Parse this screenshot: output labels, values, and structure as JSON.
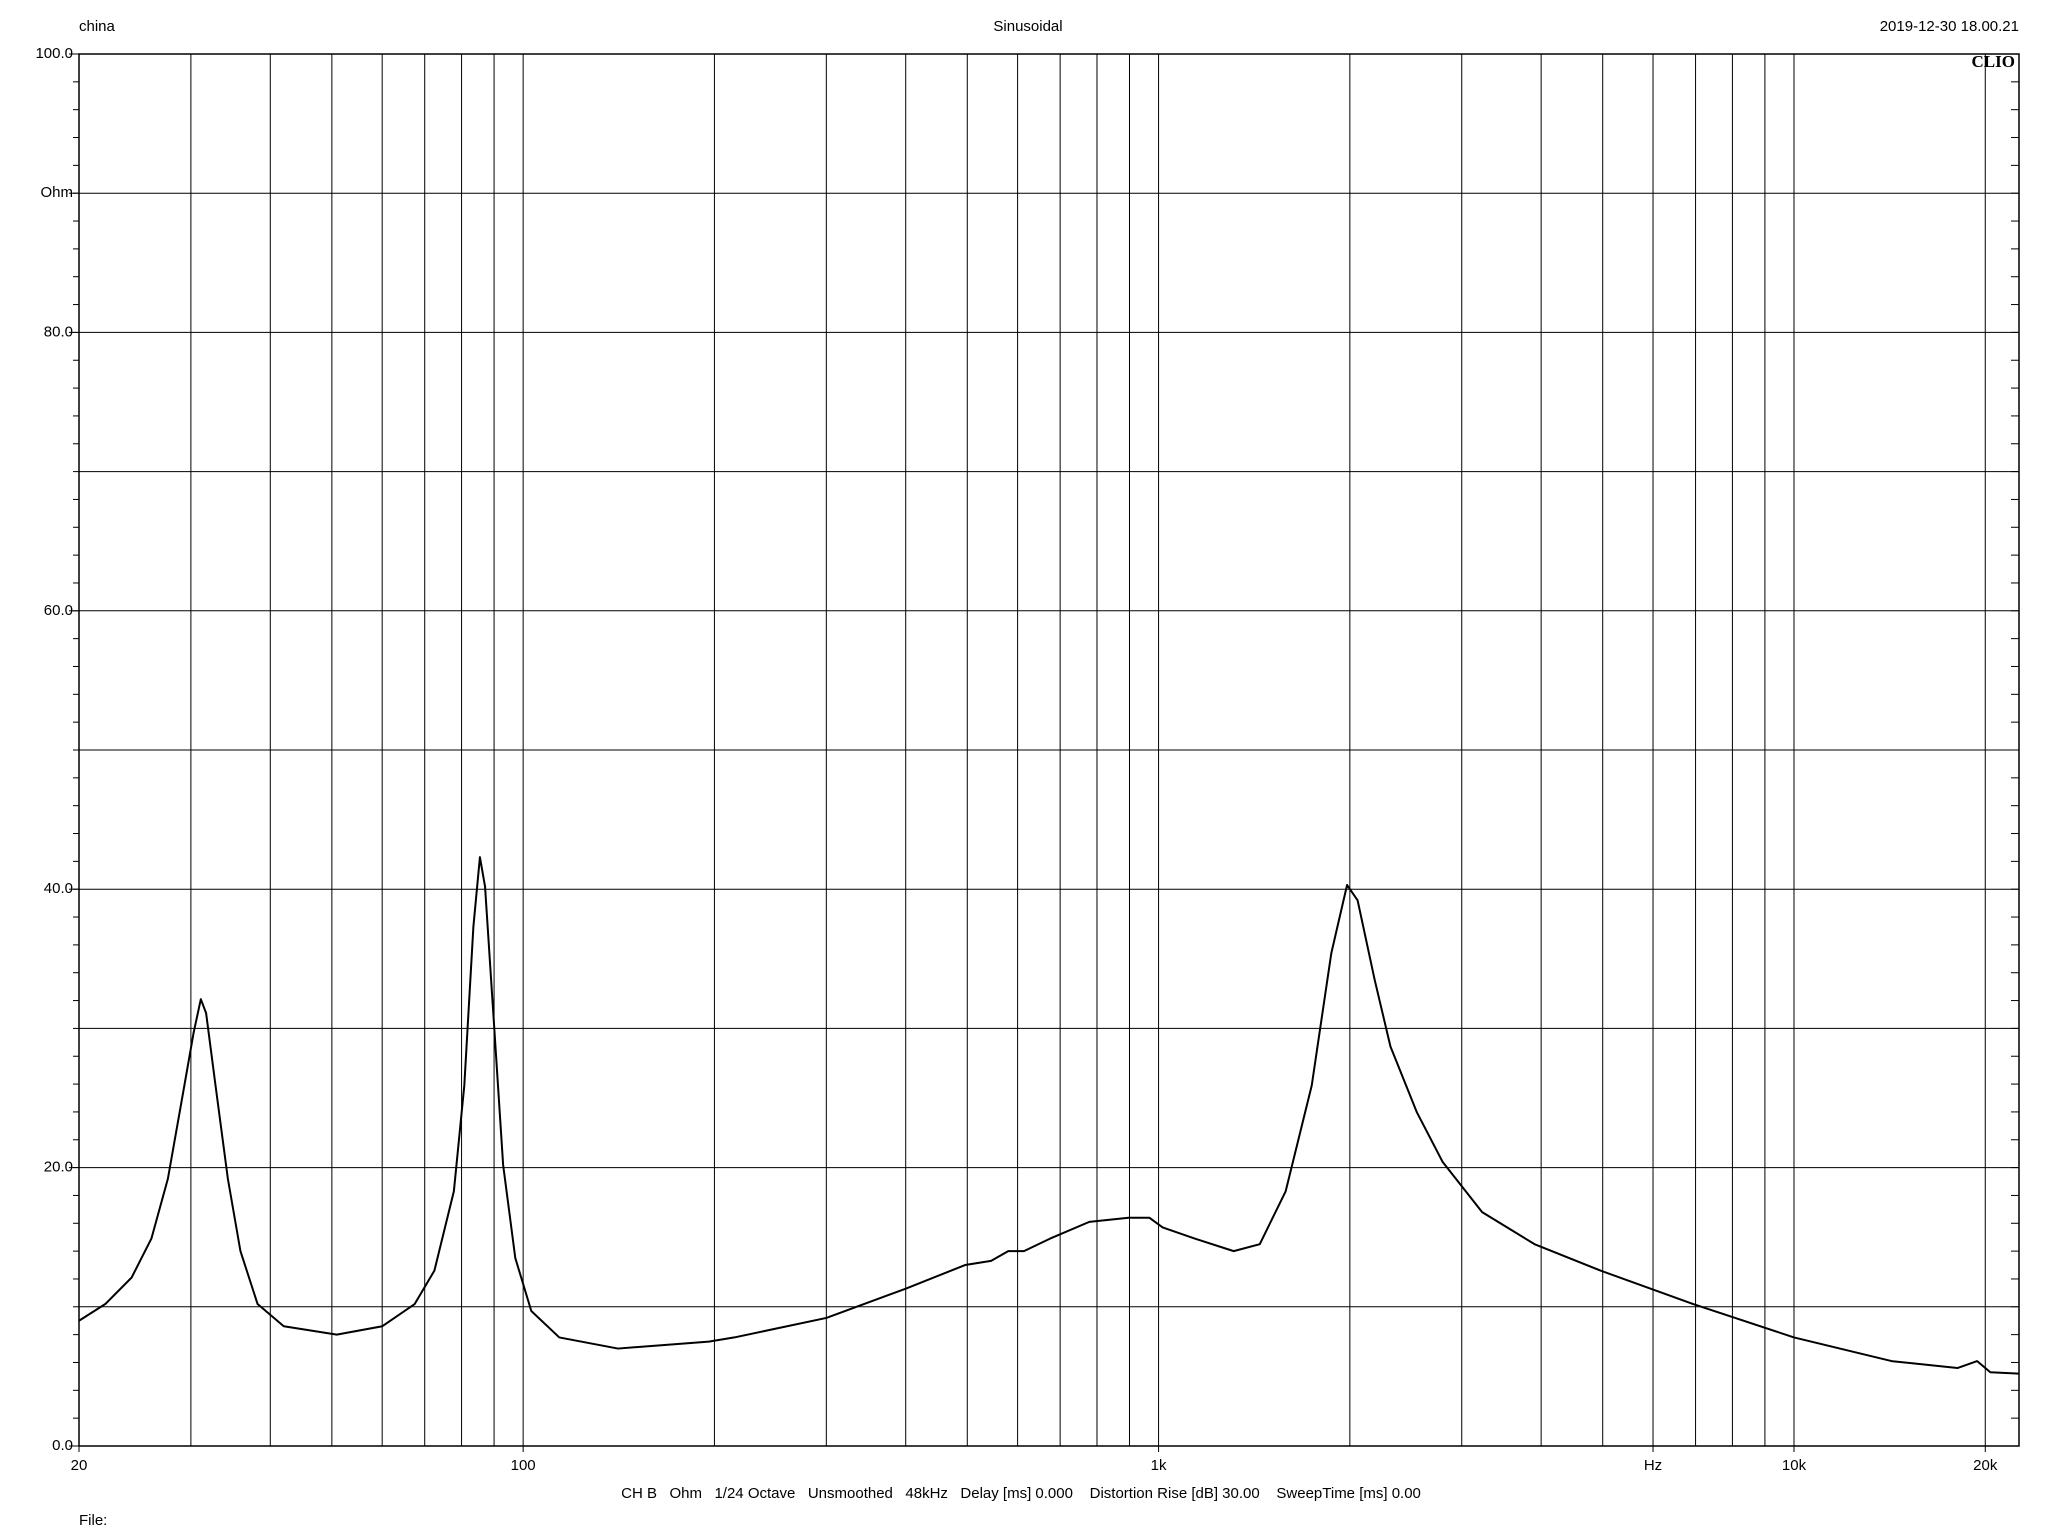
{
  "header": {
    "left": "china",
    "center": "Sinusoidal",
    "right": "2019-12-30 18.00.21",
    "brand": "CLIO"
  },
  "footer": {
    "settings": "CH B   Ohm   1/24 Octave   Unsmoothed   48kHz   Delay [ms] 0.000    Distortion Rise [dB] 30.00    SweepTime [ms] 0.00",
    "file": "File:"
  },
  "chart_data": {
    "type": "line",
    "xscale": "log",
    "grid": true,
    "color": "#000000",
    "xlim": [
      20,
      22600
    ],
    "ylim": [
      0,
      100
    ],
    "xticks": [
      20,
      100,
      {
        "value": 1000,
        "label": "1k"
      },
      {
        "value": 6000,
        "label": "Hz"
      },
      {
        "value": 10000,
        "label": "10k"
      },
      {
        "value": 20000,
        "label": "20k"
      }
    ],
    "x_gridlines": [
      30,
      40,
      50,
      60,
      70,
      80,
      90,
      100,
      200,
      300,
      400,
      500,
      600,
      700,
      800,
      900,
      1000,
      2000,
      3000,
      4000,
      5000,
      6000,
      7000,
      8000,
      9000,
      10000,
      20000
    ],
    "yticks": [
      {
        "value": 0,
        "label": "0.0"
      },
      {
        "value": 20,
        "label": "20.0"
      },
      {
        "value": 40,
        "label": "40.0"
      },
      {
        "value": 60,
        "label": "60.0"
      },
      {
        "value": 80,
        "label": "80.0"
      },
      {
        "value": 90,
        "label": "Ohm"
      },
      {
        "value": 100,
        "label": "100.0"
      }
    ],
    "y_gridlines": [
      10,
      20,
      30,
      40,
      50,
      60,
      70,
      80,
      90
    ],
    "y_minor_step": 2,
    "x": [
      20,
      22,
      24.2,
      26,
      27.6,
      29.3,
      30.3,
      31.1,
      31.7,
      32.8,
      34.3,
      35.9,
      38.2,
      42,
      50.9,
      60,
      67.5,
      72.5,
      77.8,
      80.8,
      83.5,
      85.5,
      87.1,
      89.6,
      93,
      97.2,
      103,
      114,
      141,
      196,
      215,
      300,
      400,
      496,
      545,
      580,
      614,
      675,
      778,
      897,
      967,
      1015,
      1140,
      1313,
      1443,
      1585,
      1742,
      1870,
      1980,
      2057,
      2188,
      2317,
      2548,
      2800,
      3230,
      3905,
      4960,
      6940,
      10000,
      14240,
      18080,
      19420,
      20370,
      22600
    ],
    "series": [
      {
        "name": "CH B",
        "color": "#000000",
        "values": [
          9.0,
          10.2,
          12.1,
          14.9,
          19.2,
          25.9,
          29.7,
          32.1,
          31.1,
          25.9,
          19.2,
          14.0,
          10.2,
          8.6,
          8.0,
          8.6,
          10.2,
          12.6,
          18.3,
          25.9,
          37.3,
          42.3,
          40.2,
          31.6,
          20.2,
          13.5,
          9.7,
          7.8,
          7.0,
          7.5,
          7.8,
          9.2,
          11.3,
          13.0,
          13.3,
          14.0,
          14.0,
          14.9,
          16.1,
          16.4,
          16.4,
          15.7,
          14.9,
          14.0,
          14.5,
          18.3,
          25.9,
          35.4,
          40.3,
          39.2,
          33.5,
          28.7,
          24.0,
          20.4,
          16.8,
          14.5,
          12.6,
          10.2,
          7.8,
          6.1,
          5.6,
          6.1,
          5.3,
          5.2
        ]
      }
    ]
  }
}
